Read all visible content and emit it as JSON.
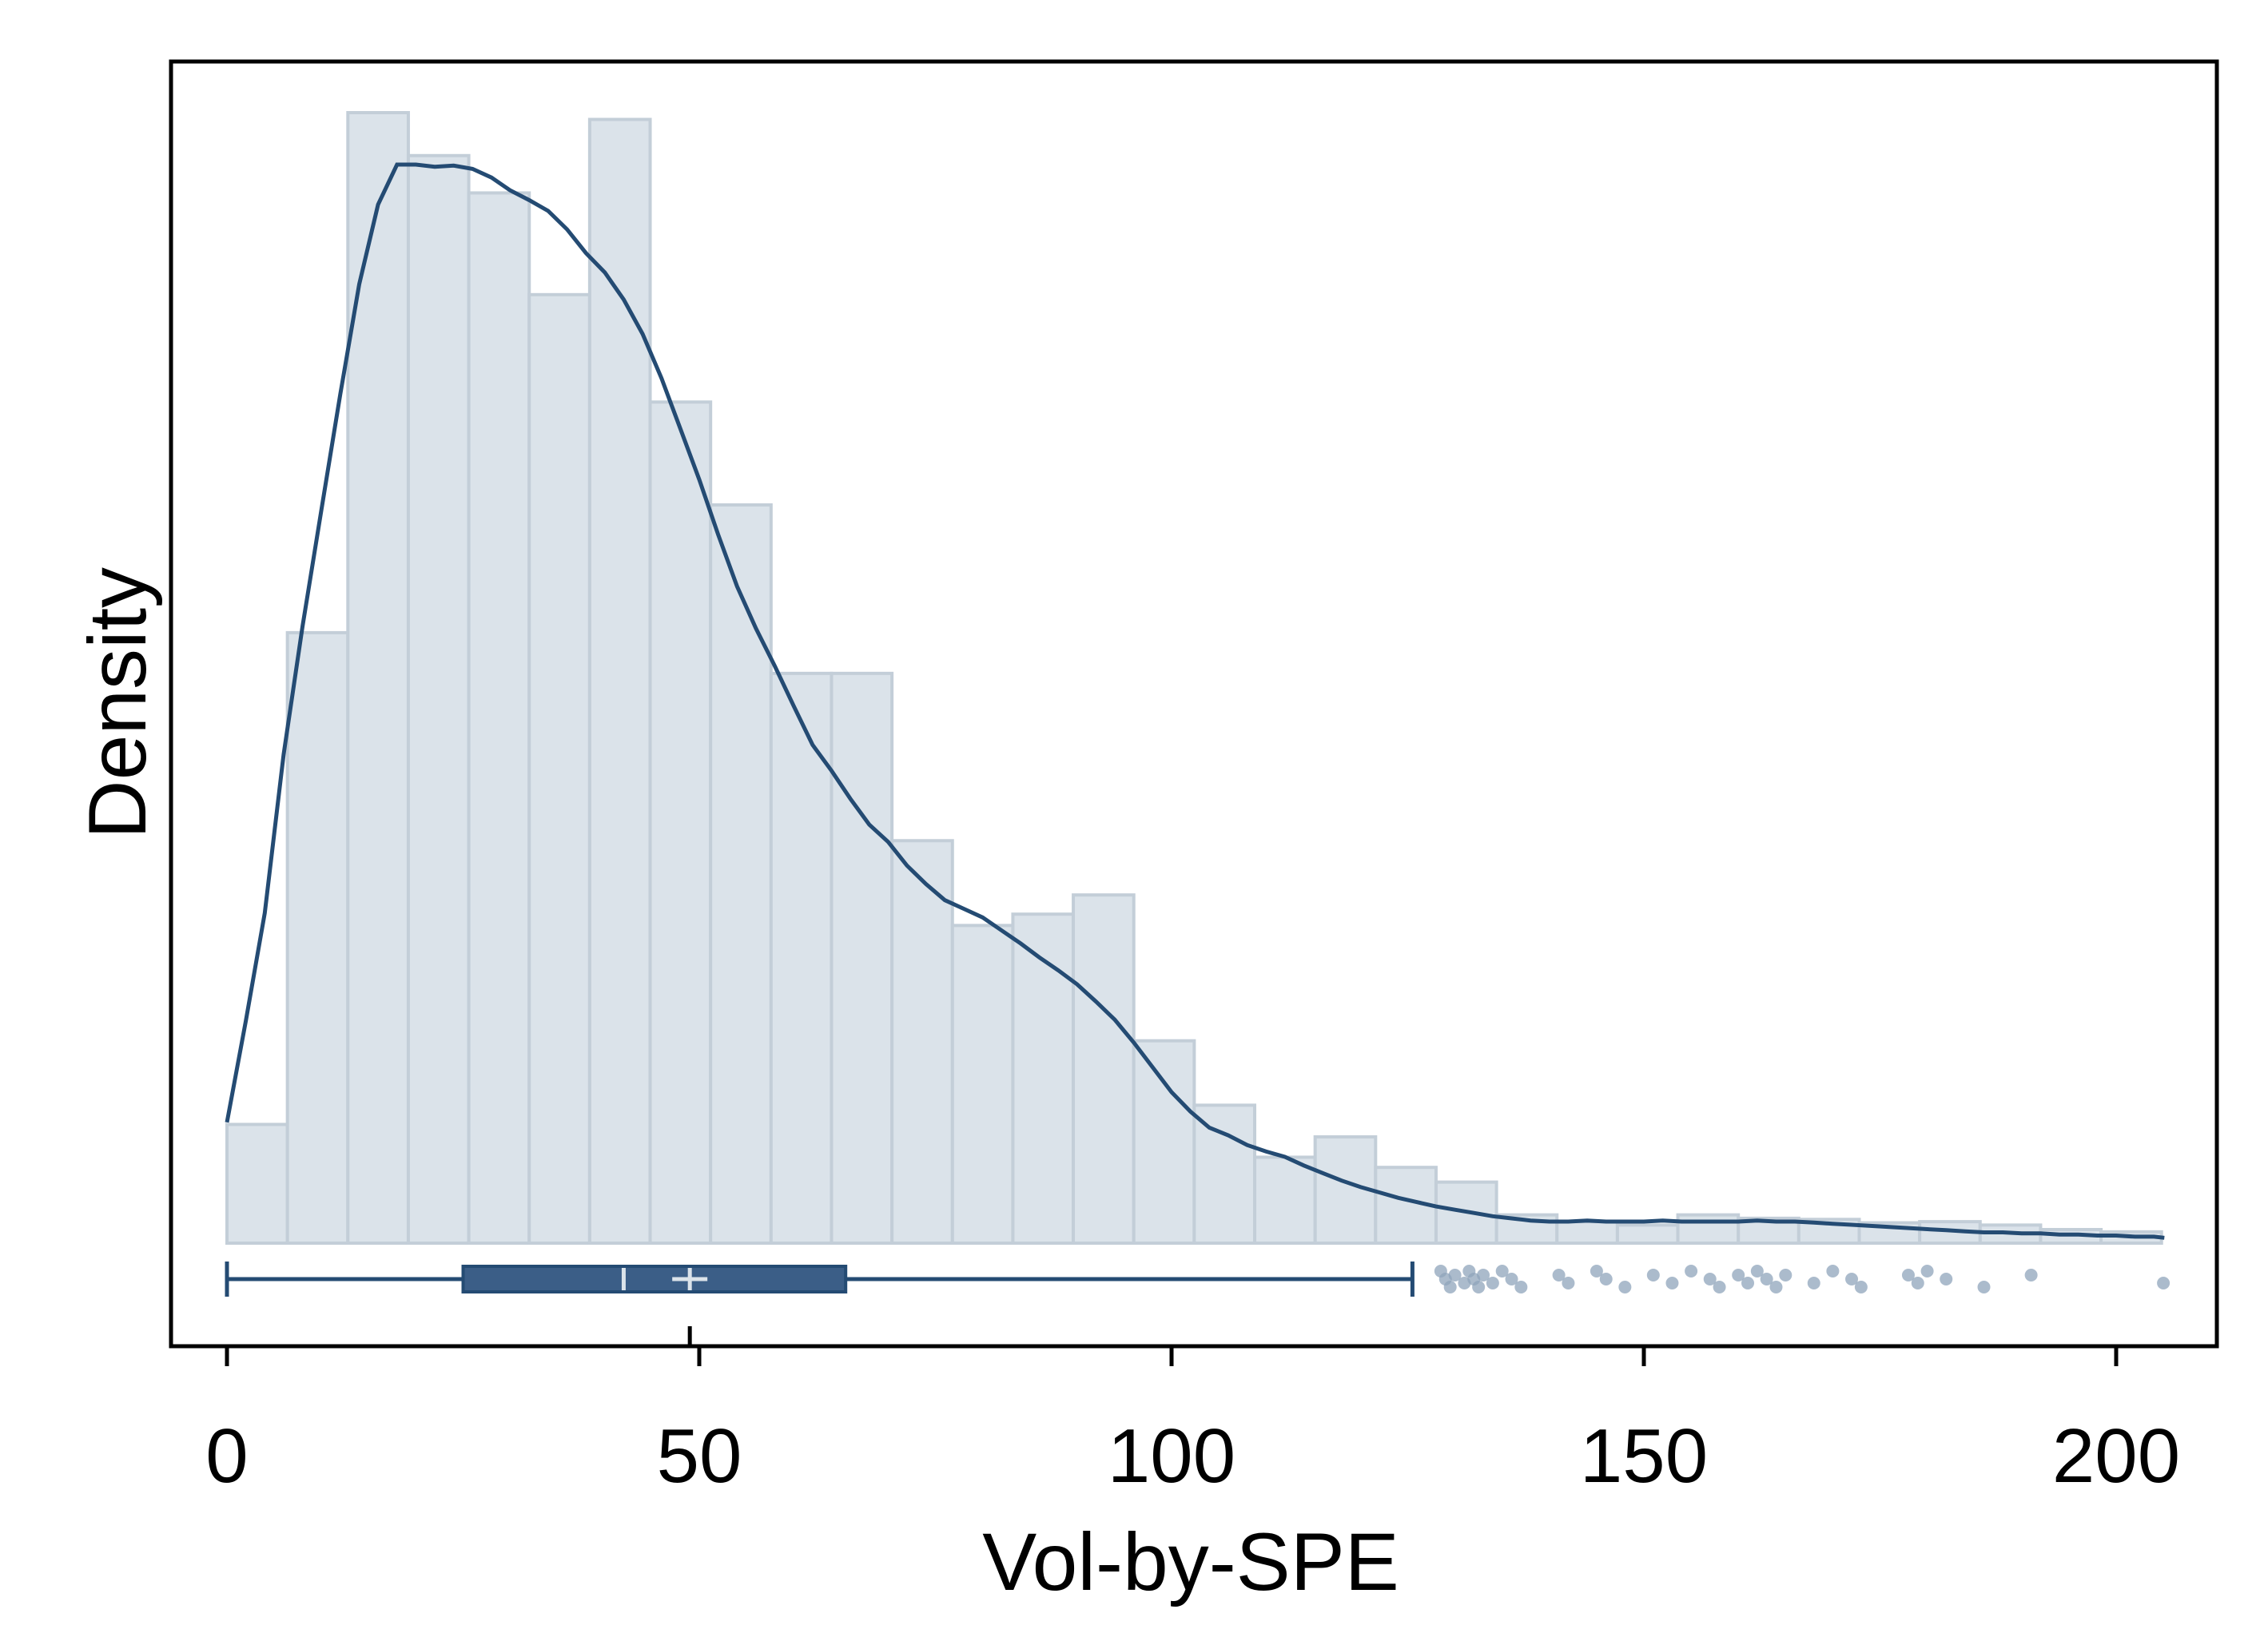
{
  "chart_data": {
    "type": "histogram",
    "xlabel": "Vol-by-SPE",
    "ylabel": "Density",
    "xlim": [
      -4.2,
      211
    ],
    "xticks": [
      0,
      50,
      100,
      150,
      200
    ],
    "grid": false,
    "legend": "none",
    "histogram": {
      "bin_width": 6.4,
      "bin_start": 0,
      "relative_heights": [
        0.105,
        0.54,
        1.0,
        0.962,
        0.929,
        0.839,
        0.994,
        0.744,
        0.653,
        0.504,
        0.504,
        0.356,
        0.281,
        0.291,
        0.308,
        0.179,
        0.122,
        0.076,
        0.094,
        0.067,
        0.054,
        0.025,
        0.019,
        0.016,
        0.025,
        0.022,
        0.021,
        0.018,
        0.019,
        0.016,
        0.012,
        0.01
      ]
    },
    "density_curve": {
      "x": [
        0,
        2,
        4,
        6,
        8,
        10,
        12,
        14,
        16,
        18,
        20,
        22,
        24,
        26,
        28,
        30,
        32,
        34,
        36,
        38,
        40,
        42,
        44,
        46,
        48,
        50,
        52,
        54,
        56,
        58,
        60,
        62,
        64,
        66,
        68,
        70,
        72,
        74,
        76,
        78,
        80,
        82,
        84,
        86,
        88,
        90,
        92,
        94,
        96,
        98,
        100,
        102,
        104,
        106,
        108,
        110,
        112,
        114,
        116,
        118,
        120,
        122,
        124,
        126,
        128,
        130,
        132,
        134,
        136,
        138,
        140,
        142,
        144,
        146,
        148,
        150,
        152,
        154,
        156,
        158,
        160,
        162,
        164,
        166,
        168,
        170,
        172,
        174,
        176,
        178,
        180,
        182,
        184,
        186,
        188,
        190,
        192,
        194,
        196,
        198,
        200,
        202,
        204,
        205.1
      ],
      "relative_y": [
        0.112,
        0.206,
        0.306,
        0.453,
        0.572,
        0.68,
        0.787,
        0.889,
        0.963,
        1.0,
        1.0,
        0.998,
        0.999,
        0.996,
        0.988,
        0.976,
        0.967,
        0.957,
        0.94,
        0.918,
        0.9,
        0.875,
        0.843,
        0.802,
        0.755,
        0.708,
        0.657,
        0.609,
        0.57,
        0.535,
        0.498,
        0.462,
        0.438,
        0.412,
        0.388,
        0.372,
        0.35,
        0.333,
        0.318,
        0.31,
        0.302,
        0.29,
        0.278,
        0.265,
        0.253,
        0.24,
        0.224,
        0.207,
        0.186,
        0.163,
        0.14,
        0.122,
        0.107,
        0.1,
        0.091,
        0.085,
        0.08,
        0.072,
        0.065,
        0.058,
        0.052,
        0.047,
        0.042,
        0.038,
        0.034,
        0.031,
        0.028,
        0.025,
        0.023,
        0.021,
        0.02,
        0.02,
        0.021,
        0.02,
        0.02,
        0.02,
        0.021,
        0.02,
        0.02,
        0.02,
        0.02,
        0.021,
        0.02,
        0.02,
        0.019,
        0.018,
        0.017,
        0.016,
        0.015,
        0.014,
        0.013,
        0.012,
        0.011,
        0.01,
        0.01,
        0.009,
        0.009,
        0.008,
        0.008,
        0.007,
        0.007,
        0.006,
        0.006,
        0.005
      ]
    },
    "boxplot": {
      "whisker_low": 0,
      "q1": 25,
      "median": 42,
      "mean": 49,
      "q3": 65.5,
      "whisker_high": 125.5,
      "outliers": [
        128.5,
        129,
        129.5,
        130,
        131,
        131.5,
        132,
        132.5,
        133,
        134,
        135,
        136,
        137,
        141,
        142,
        145,
        146,
        148,
        151,
        153,
        155,
        157,
        158,
        160,
        161,
        162,
        163,
        164,
        165,
        168,
        170,
        172,
        173,
        178,
        179,
        180,
        182,
        186,
        191,
        205
      ]
    },
    "colors": {
      "bar_fill": "#dbe3ea",
      "bar_stroke": "#c3ced8",
      "curve": "#244b73",
      "box_fill": "#3b5e87",
      "box_line": "#244b73",
      "mean_marker": "#dbe3ea",
      "outlier": "#8fa4bb"
    }
  }
}
